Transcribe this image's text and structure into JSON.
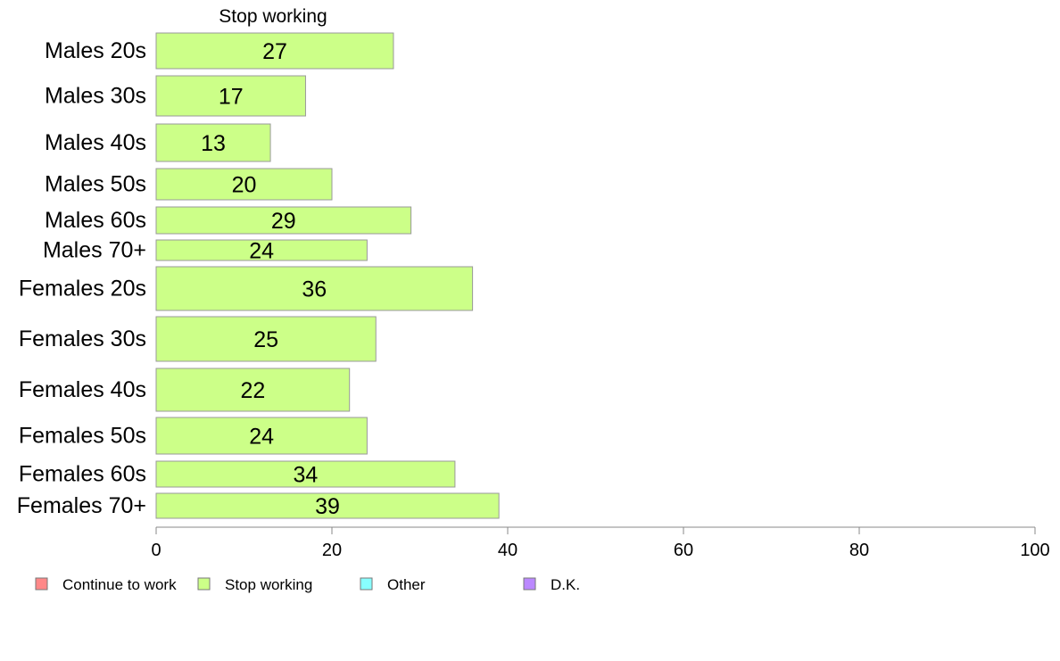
{
  "chart_data": {
    "type": "bar",
    "orientation": "horizontal",
    "title": "Stop working",
    "categories": [
      "Males 20s",
      "Males 30s",
      "Males 40s",
      "Males 50s",
      "Males 60s",
      "Males 70+",
      "Females 20s",
      "Females 30s",
      "Females 40s",
      "Females 50s",
      "Females 60s",
      "Females 70+"
    ],
    "series": [
      {
        "name": "Stop working",
        "color": "#ccff88",
        "values": [
          27,
          17,
          13,
          20,
          29,
          24,
          36,
          25,
          22,
          24,
          34,
          39
        ]
      }
    ],
    "xlim": [
      0,
      100
    ],
    "x_ticks": [
      0,
      20,
      40,
      60,
      80,
      100
    ],
    "grid": false,
    "legend": {
      "placement": "bottom-left",
      "items": [
        {
          "label": "Continue to work",
          "color": "#ff8888"
        },
        {
          "label": "Stop working",
          "color": "#ccff88"
        },
        {
          "label": "Other",
          "color": "#88ffff"
        },
        {
          "label": "D.K.",
          "color": "#bb88ff"
        }
      ]
    },
    "bar_stroke_color": "#999999"
  }
}
